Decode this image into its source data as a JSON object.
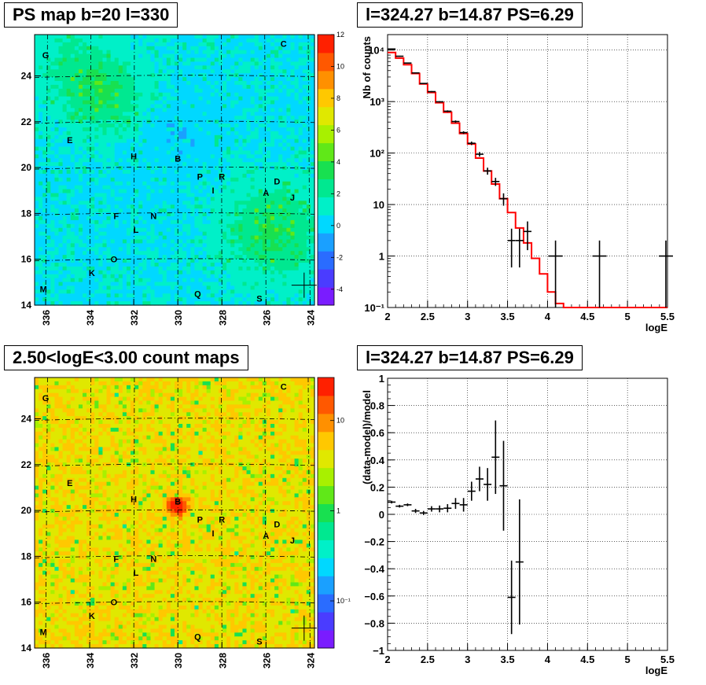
{
  "panels": {
    "psmap": {
      "title": "PS map b=20 l=330",
      "xticks": [
        "336",
        "334",
        "332",
        "330",
        "328",
        "326",
        "324"
      ],
      "yticks": [
        "14",
        "16",
        "18",
        "20",
        "22",
        "24"
      ],
      "colorbar_ticks": [
        "12",
        "10",
        "8",
        "6",
        "4",
        "2",
        "0",
        "-2",
        "-4"
      ]
    },
    "countmap": {
      "title": "2.50<logE<3.00 count maps",
      "xticks": [
        "336",
        "334",
        "332",
        "330",
        "328",
        "326",
        "324"
      ],
      "yticks": [
        "14",
        "16",
        "18",
        "20",
        "22",
        "24"
      ],
      "colorbar_ticks": [
        "10",
        "1",
        "10⁻¹"
      ]
    },
    "spectrum": {
      "title": "l=324.27 b=14.87 PS=6.29"
    },
    "residual": {
      "title": "l=324.27 b=14.87 PS=6.29"
    }
  },
  "source_labels": [
    "A",
    "B",
    "C",
    "D",
    "E",
    "F",
    "G",
    "H",
    "I",
    "J",
    "K",
    "L",
    "M",
    "N",
    "O",
    "P",
    "Q",
    "R",
    "S"
  ],
  "chart_data": [
    {
      "type": "heatmap",
      "title": "PS map b=20 l=330",
      "xlabel": "",
      "ylabel": "",
      "xlim": [
        336.5,
        323.8
      ],
      "ylim": [
        14,
        25.8
      ],
      "colorbar_range": [
        -5,
        12
      ],
      "grid": true,
      "source_markers": [
        {
          "label": "G",
          "l": 336.0,
          "b": 24.9
        },
        {
          "label": "C",
          "l": 325.2,
          "b": 25.4
        },
        {
          "label": "E",
          "l": 334.9,
          "b": 21.2
        },
        {
          "label": "H",
          "l": 332.0,
          "b": 20.5
        },
        {
          "label": "B",
          "l": 330.0,
          "b": 20.4
        },
        {
          "label": "P",
          "l": 329.0,
          "b": 19.6
        },
        {
          "label": "R",
          "l": 328.0,
          "b": 19.6
        },
        {
          "label": "I",
          "l": 328.4,
          "b": 19.0
        },
        {
          "label": "D",
          "l": 325.5,
          "b": 19.4
        },
        {
          "label": "A",
          "l": 326.0,
          "b": 18.9
        },
        {
          "label": "J",
          "l": 324.8,
          "b": 18.7
        },
        {
          "label": "F",
          "l": 332.8,
          "b": 17.9
        },
        {
          "label": "N",
          "l": 331.1,
          "b": 17.9
        },
        {
          "label": "L",
          "l": 331.9,
          "b": 17.3
        },
        {
          "label": "O",
          "l": 332.9,
          "b": 16.0
        },
        {
          "label": "K",
          "l": 333.9,
          "b": 15.4
        },
        {
          "label": "M",
          "l": 336.1,
          "b": 14.7
        },
        {
          "label": "Q",
          "l": 329.1,
          "b": 14.5
        },
        {
          "label": "S",
          "l": 326.3,
          "b": 14.3
        }
      ],
      "cross_marker": {
        "l": 324.27,
        "b": 14.87
      }
    },
    {
      "type": "heatmap",
      "title": "2.50<logE<3.00 count maps",
      "xlabel": "",
      "ylabel": "",
      "xlim": [
        336.5,
        323.8
      ],
      "ylim": [
        14,
        25.8
      ],
      "colorbar_scale": "log",
      "colorbar_range": [
        0.03,
        30
      ],
      "grid": true,
      "hotspot": {
        "label": "B",
        "l": 330.0,
        "b": 20.5
      },
      "cross_marker": {
        "l": 324.27,
        "b": 14.87
      }
    },
    {
      "type": "line",
      "title": "l=324.27 b=14.87 PS=6.29",
      "xlabel": "logE",
      "ylabel": "Nb of counts",
      "xlim": [
        2,
        5.5
      ],
      "ylim": [
        0.1,
        20000
      ],
      "yscale": "log",
      "grid": true,
      "xticks": [
        "2",
        "2.5",
        "3",
        "3.5",
        "4",
        "4.5",
        "5",
        "5.5"
      ],
      "yticks": [
        "10⁻¹",
        "1",
        "10",
        "10²",
        "10³",
        "10⁴"
      ],
      "series": [
        {
          "type": "step",
          "color": "#ff0000",
          "edges": [
            2.0,
            2.1,
            2.2,
            2.3,
            2.4,
            2.5,
            2.6,
            2.7,
            2.8,
            2.9,
            3.0,
            3.1,
            3.2,
            3.3,
            3.4,
            3.5,
            3.6,
            3.7,
            3.8,
            3.9,
            4.0,
            4.1,
            4.2,
            5.5
          ],
          "values": [
            9000,
            7000,
            5200,
            3500,
            2200,
            1500,
            950,
            620,
            380,
            240,
            150,
            80,
            45,
            25,
            13,
            7,
            3.5,
            1.8,
            0.9,
            0.45,
            0.2,
            0.12,
            0.1
          ]
        },
        {
          "type": "errorbar",
          "color": "#000000",
          "points": [
            {
              "x": 2.05,
              "y": 10500,
              "lo": 10300,
              "hi": 10700
            },
            {
              "x": 2.15,
              "y": 7600,
              "lo": 7450,
              "hi": 7750
            },
            {
              "x": 2.25,
              "y": 5600,
              "lo": 5480,
              "hi": 5720
            },
            {
              "x": 2.35,
              "y": 3600,
              "lo": 3520,
              "hi": 3680
            },
            {
              "x": 2.45,
              "y": 2250,
              "lo": 2200,
              "hi": 2300
            },
            {
              "x": 2.55,
              "y": 1560,
              "lo": 1520,
              "hi": 1600
            },
            {
              "x": 2.65,
              "y": 990,
              "lo": 960,
              "hi": 1020
            },
            {
              "x": 2.75,
              "y": 650,
              "lo": 625,
              "hi": 675
            },
            {
              "x": 2.85,
              "y": 410,
              "lo": 390,
              "hi": 430
            },
            {
              "x": 2.95,
              "y": 250,
              "lo": 235,
              "hi": 265
            },
            {
              "x": 3.05,
              "y": 155,
              "lo": 143,
              "hi": 167
            },
            {
              "x": 3.15,
              "y": 95,
              "lo": 85,
              "hi": 105
            },
            {
              "x": 3.25,
              "y": 45,
              "lo": 38,
              "hi": 52
            },
            {
              "x": 3.35,
              "y": 28,
              "lo": 23,
              "hi": 33
            },
            {
              "x": 3.45,
              "y": 13,
              "lo": 9.5,
              "hi": 16.5
            },
            {
              "x": 3.55,
              "y": 2,
              "lo": 0.6,
              "hi": 3.4
            },
            {
              "x": 3.65,
              "y": 2,
              "lo": 0.6,
              "hi": 3.4
            },
            {
              "x": 3.75,
              "y": 3,
              "lo": 1.3,
              "hi": 4.7
            },
            {
              "x": 4.1,
              "y": 1,
              "lo": 0.1,
              "hi": 2.0
            },
            {
              "x": 4.65,
              "y": 1,
              "lo": 0.1,
              "hi": 2.0
            },
            {
              "x": 5.48,
              "y": 1,
              "lo": 0.1,
              "hi": 2.0
            }
          ]
        }
      ]
    },
    {
      "type": "scatter",
      "title": "l=324.27 b=14.87 PS=6.29",
      "xlabel": "logE",
      "ylabel": "(data-model)/model",
      "xlim": [
        2,
        5.5
      ],
      "ylim": [
        -1,
        1
      ],
      "grid": true,
      "xticks": [
        "2",
        "2.5",
        "3",
        "3.5",
        "4",
        "4.5",
        "5",
        "5.5"
      ],
      "yticks": [
        "−1",
        "−0.8",
        "−0.6",
        "−0.4",
        "−0.2",
        "0",
        "0.2",
        "0.4",
        "0.6",
        "0.8",
        "1"
      ],
      "series": [
        {
          "type": "errorbar",
          "color": "#000000",
          "points": [
            {
              "x": 2.05,
              "y": 0.09,
              "err": 0.01
            },
            {
              "x": 2.15,
              "y": 0.06,
              "err": 0.01
            },
            {
              "x": 2.25,
              "y": 0.07,
              "err": 0.01
            },
            {
              "x": 2.35,
              "y": 0.025,
              "err": 0.015
            },
            {
              "x": 2.45,
              "y": 0.01,
              "err": 0.015
            },
            {
              "x": 2.55,
              "y": 0.04,
              "err": 0.02
            },
            {
              "x": 2.65,
              "y": 0.04,
              "err": 0.025
            },
            {
              "x": 2.75,
              "y": 0.045,
              "err": 0.03
            },
            {
              "x": 2.85,
              "y": 0.08,
              "err": 0.04
            },
            {
              "x": 2.95,
              "y": 0.07,
              "err": 0.05
            },
            {
              "x": 3.05,
              "y": 0.17,
              "err": 0.07
            },
            {
              "x": 3.15,
              "y": 0.26,
              "err": 0.09
            },
            {
              "x": 3.25,
              "y": 0.22,
              "err": 0.12
            },
            {
              "x": 3.35,
              "y": 0.42,
              "err": 0.27
            },
            {
              "x": 3.45,
              "y": 0.21,
              "err": 0.33
            },
            {
              "x": 3.55,
              "y": -0.61,
              "err": 0.27
            },
            {
              "x": 3.65,
              "y": -0.35,
              "err": 0.46
            }
          ]
        }
      ]
    }
  ]
}
